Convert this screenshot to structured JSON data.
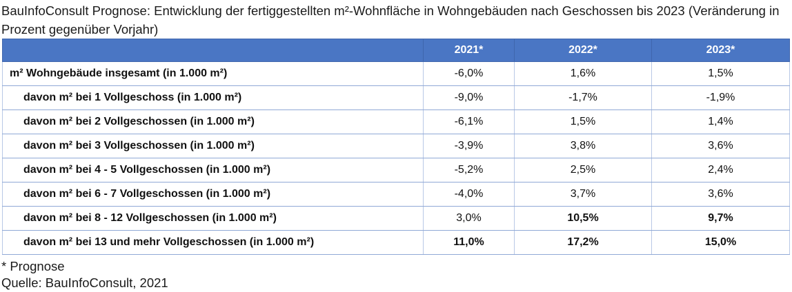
{
  "title": "BauInfoConsult Prognose: Entwicklung der fertiggestellten m²-Wohnfläche in Wohngebäuden nach Geschossen bis 2023 (Veränderung in Prozent gegenüber Vorjahr)",
  "table": {
    "headers": [
      "",
      "2021*",
      "2022*",
      "2023*"
    ],
    "rows": [
      {
        "label": "m² Wohngebäude insgesamt (in 1.000 m²)",
        "values": [
          "-6,0%",
          "1,6%",
          "1,5%"
        ],
        "bold": [
          false,
          false,
          false
        ]
      },
      {
        "label": "davon m² bei 1 Vollgeschoss (in 1.000 m²)",
        "values": [
          "-9,0%",
          "-1,7%",
          "-1,9%"
        ],
        "bold": [
          false,
          false,
          false
        ]
      },
      {
        "label": "davon m² bei 2 Vollgeschossen (in 1.000 m²)",
        "values": [
          "-6,1%",
          "1,5%",
          "1,4%"
        ],
        "bold": [
          false,
          false,
          false
        ]
      },
      {
        "label": "davon m² bei 3 Vollgeschossen (in 1.000 m²)",
        "values": [
          "-3,9%",
          "3,8%",
          "3,6%"
        ],
        "bold": [
          false,
          false,
          false
        ]
      },
      {
        "label": "davon m² bei 4 - 5 Vollgeschossen (in 1.000 m²)",
        "values": [
          "-5,2%",
          "2,5%",
          "2,4%"
        ],
        "bold": [
          false,
          false,
          false
        ]
      },
      {
        "label": "davon m² bei 6 - 7 Vollgeschossen (in 1.000 m²)",
        "values": [
          "-4,0%",
          "3,7%",
          "3,6%"
        ],
        "bold": [
          false,
          false,
          false
        ]
      },
      {
        "label": "davon m² bei 8 - 12 Vollgeschossen (in 1.000 m²)",
        "values": [
          "3,0%",
          "10,5%",
          "9,7%"
        ],
        "bold": [
          false,
          true,
          true
        ]
      },
      {
        "label": "davon m² bei 13 und mehr Vollgeschossen (in 1.000 m²)",
        "values": [
          "11,0%",
          "17,2%",
          "15,0%"
        ],
        "bold": [
          true,
          true,
          true
        ]
      }
    ]
  },
  "footnote": {
    "note": "* Prognose",
    "source": "Quelle: BauInfoConsult, 2021"
  },
  "colors": {
    "header_bg": "#4a76c4",
    "header_text": "#ffffff",
    "row_border": "#8fa8d6"
  }
}
